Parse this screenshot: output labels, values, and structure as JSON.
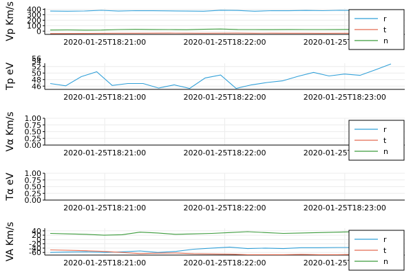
{
  "chart_data": [
    {
      "type": "line",
      "ylabel": "Vp Km/s",
      "ylim": [
        -60,
        420
      ],
      "yticks": [
        "0",
        "100",
        "200",
        "300",
        "400"
      ],
      "xlim": [
        "2020-01-25T18:20:30",
        "2020-01-25T18:23:30"
      ],
      "xticks": [
        "2020-01-25T18:21:00",
        "2020-01-25T18:22:00",
        "2020-01-25T18:23:00"
      ],
      "grid": true,
      "legend": "bottom-right",
      "colors": {
        "r": "#2f9fd8",
        "t": "#e26b50",
        "n": "#3a9a3a"
      },
      "series": [
        {
          "name": "r",
          "values": [
            368,
            366,
            370,
            382,
            368,
            376,
            374,
            372,
            368,
            366,
            383,
            380,
            366,
            376,
            375,
            380,
            376,
            382,
            378,
            384,
            382
          ]
        },
        {
          "name": "t",
          "values": [
            -45,
            -44,
            -42,
            -40,
            -39,
            -38,
            -37,
            -36,
            -37,
            -38,
            -37,
            -36,
            -38,
            -37,
            -38,
            -39,
            -40,
            -39,
            -40,
            -41,
            -42
          ]
        },
        {
          "name": "n",
          "values": [
            20,
            22,
            18,
            20,
            28,
            32,
            30,
            28,
            26,
            34,
            38,
            30,
            28,
            27,
            30,
            28,
            28,
            30,
            31,
            34,
            34
          ]
        }
      ]
    },
    {
      "type": "line",
      "ylabel": "Tp eV",
      "ylim": [
        45,
        53
      ],
      "yticks": [
        "46",
        "48",
        "50",
        "52"
      ],
      "extra_tick_labels": [
        "54",
        "56"
      ],
      "xlim": [
        "2020-01-25T18:20:30",
        "2020-01-25T18:23:30"
      ],
      "xticks": [
        "2020-01-25T18:21:00",
        "2020-01-25T18:22:00",
        "2020-01-25T18:23:00"
      ],
      "grid": true,
      "colors": {
        "line": "#2f9fd8"
      },
      "series": [
        {
          "values": [
            46.8,
            46.1,
            48.9,
            50.4,
            46.2,
            46.8,
            46.8,
            45.4,
            46.4,
            45.3,
            48.5,
            49.4,
            45.3,
            46.4,
            47.1,
            47.6,
            49.0,
            50.2,
            49.1,
            49.7,
            49.3,
            51.0,
            52.8
          ]
        }
      ]
    },
    {
      "type": "line",
      "ylabel": "Vα Km/s",
      "ylim": [
        0,
        1
      ],
      "yticks": [
        "0.00",
        "0.25",
        "0.50",
        "0.75",
        "1.00"
      ],
      "xlim": [
        "2020-01-25T18:20:30",
        "2020-01-25T18:23:30"
      ],
      "xticks": [
        "2020-01-25T18:21:00",
        "2020-01-25T18:22:00",
        "2020-01-25T18:23:00"
      ],
      "grid": true,
      "legend": "bottom-right",
      "colors": {
        "r": "#2f9fd8",
        "t": "#e26b50",
        "n": "#3a9a3a"
      },
      "series": [
        {
          "name": "r",
          "values": []
        },
        {
          "name": "t",
          "values": []
        },
        {
          "name": "n",
          "values": []
        }
      ]
    },
    {
      "type": "line",
      "ylabel": "Tα eV",
      "ylim": [
        0,
        1
      ],
      "yticks": [
        "0.00",
        "0.25",
        "0.50",
        "0.75",
        "1.00"
      ],
      "xlim": [
        "2020-01-25T18:20:30",
        "2020-01-25T18:23:30"
      ],
      "xticks": [
        "2020-01-25T18:21:00",
        "2020-01-25T18:22:00",
        "2020-01-25T18:23:00"
      ],
      "grid": true,
      "series": []
    },
    {
      "type": "line",
      "ylabel": "VA Km/s",
      "ylim": [
        -72,
        52
      ],
      "yticks": [
        "-60",
        "-40",
        "-20",
        "0",
        "20",
        "40"
      ],
      "xlim": [
        "2020-01-25T18:20:30",
        "2020-01-25T18:23:30"
      ],
      "xticks": [
        "2020-01-25T18:21:00",
        "2020-01-25T18:22:00",
        "2020-01-25T18:23:00"
      ],
      "grid": true,
      "legend": "bottom-right",
      "colors": {
        "r": "#2f9fd8",
        "t": "#e26b50",
        "n": "#3a9a3a"
      },
      "series": [
        {
          "name": "r",
          "values": [
            -60,
            -58,
            -57,
            -60,
            -57,
            -53,
            -60,
            -55,
            -45,
            -40,
            -35,
            -42,
            -40,
            -42,
            -38,
            -38,
            -37,
            -37,
            -36,
            -35
          ]
        },
        {
          "name": "t",
          "values": [
            -48,
            -50,
            -52,
            -55,
            -60,
            -65,
            -63,
            -62,
            -66,
            -67,
            -68,
            -70,
            -70,
            -70,
            -69,
            -70,
            -70,
            -69,
            -70,
            -69
          ]
        },
        {
          "name": "n",
          "values": [
            28,
            26,
            24,
            20,
            22,
            34,
            30,
            24,
            26,
            28,
            32,
            36,
            32,
            28,
            30,
            32,
            34,
            36,
            36,
            38
          ]
        }
      ]
    }
  ]
}
